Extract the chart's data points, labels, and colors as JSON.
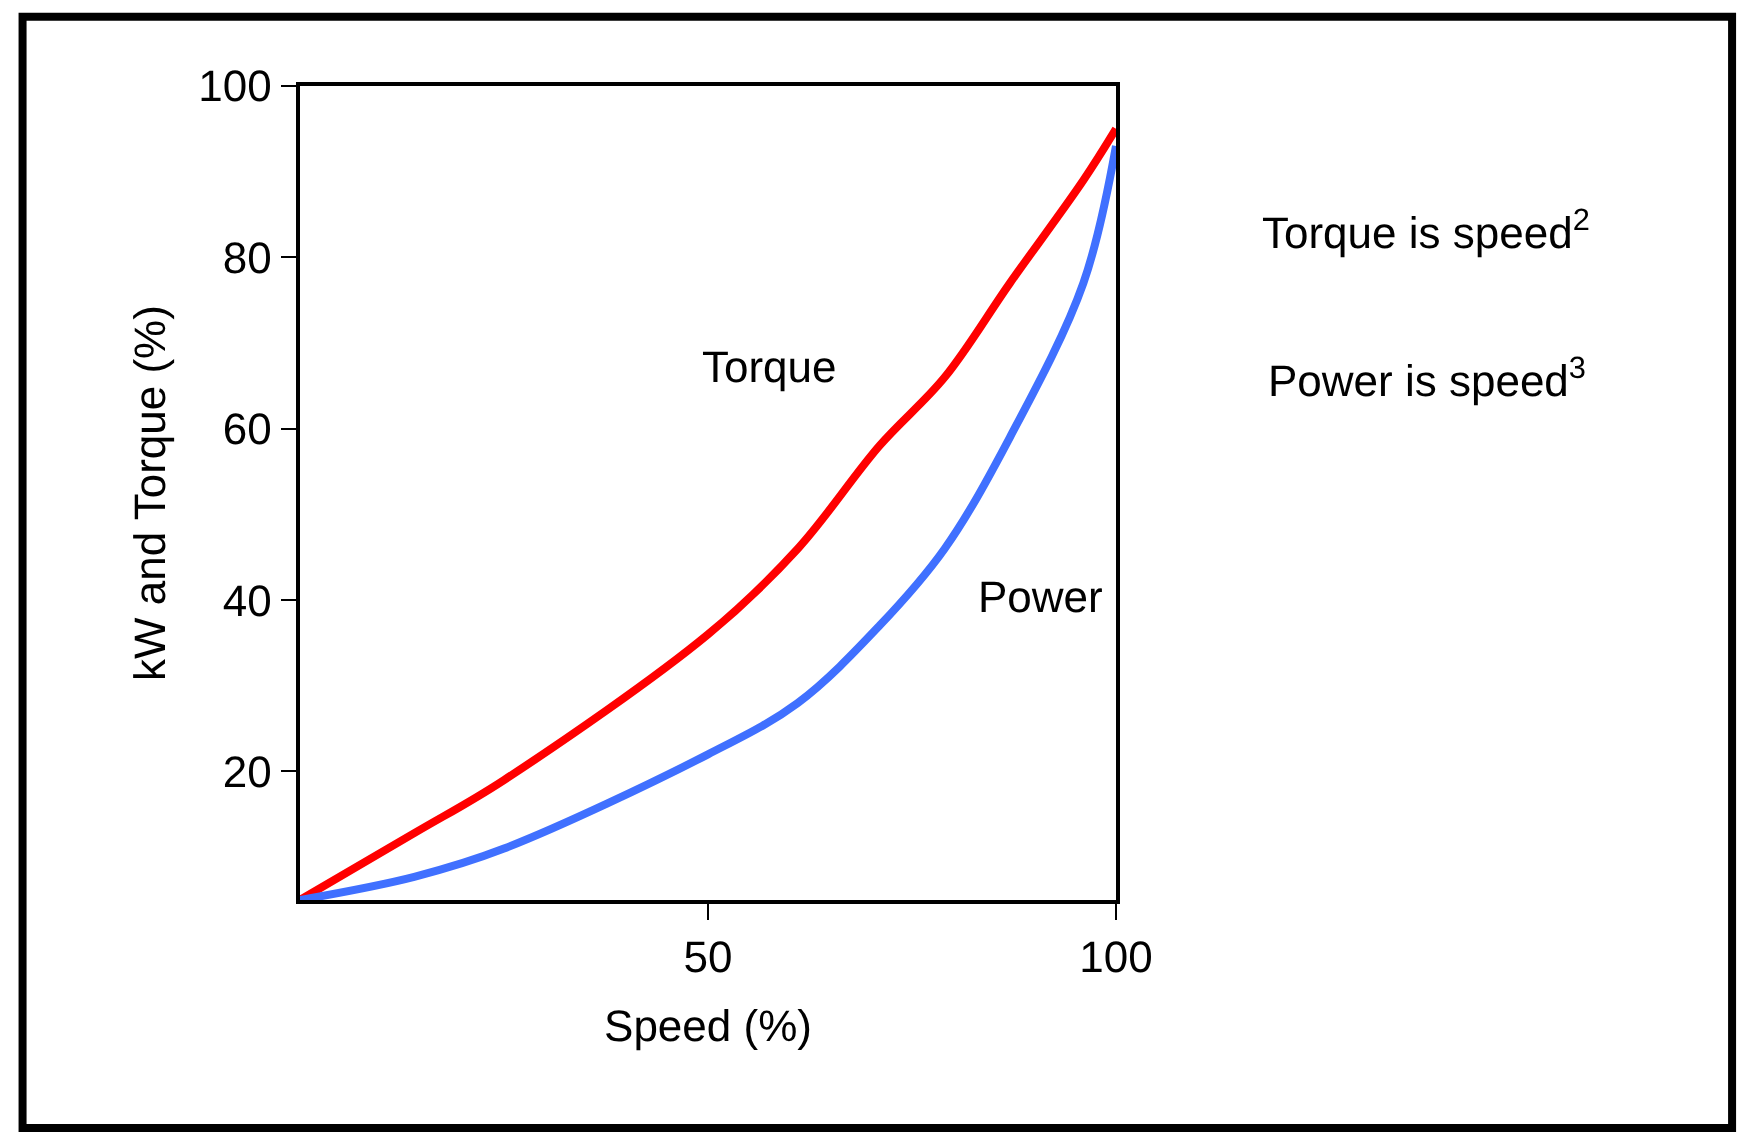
{
  "chart_data": {
    "type": "line",
    "xlabel": "Speed (%)",
    "ylabel": "kW and Torque (%)",
    "x": [
      0,
      14,
      25,
      50,
      61,
      71,
      79,
      87,
      96,
      100
    ],
    "series": [
      {
        "name": "Torque",
        "color": "#ff0000",
        "values": [
          5,
          12.8,
          19,
          36,
          46,
          58,
          66,
          77,
          89,
          95
        ]
      },
      {
        "name": "Power",
        "color": "#4070ff",
        "values": [
          5,
          7.7,
          11,
          22,
          28,
          37,
          46,
          59,
          77,
          93
        ]
      }
    ],
    "xlim": [
      0,
      100
    ],
    "xticks": [
      50,
      100
    ],
    "ylim": [
      5,
      100
    ],
    "yticks": [
      20,
      40,
      60,
      80,
      100
    ],
    "annotations": [
      "Torque is speed$^{2}$",
      "Power is speed$^{3}$"
    ],
    "legend": false,
    "marker": "none",
    "line_style": "solid"
  }
}
